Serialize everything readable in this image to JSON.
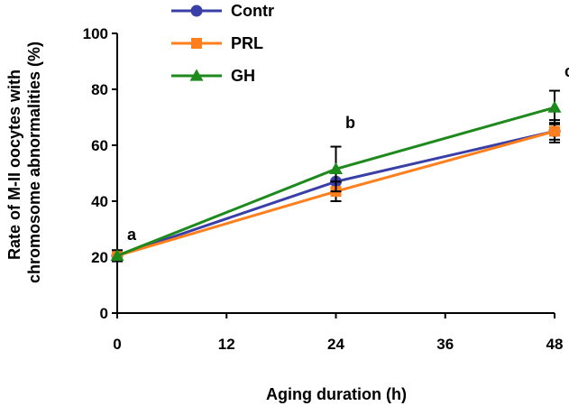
{
  "chart_data": {
    "type": "line",
    "title": "",
    "xlabel": "Aging duration (h)",
    "ylabel_lines": [
      "Rate of M-II oocytes with",
      "chromosome abnormalities (%)"
    ],
    "x": [
      0,
      24,
      48
    ],
    "x_ticks": [
      0,
      12,
      24,
      36,
      48
    ],
    "y_ticks": [
      0,
      20,
      40,
      60,
      80,
      100
    ],
    "xlim": [
      0,
      48
    ],
    "ylim": [
      0,
      100
    ],
    "grid": false,
    "legend_position": "top-left",
    "series": [
      {
        "name": "Contr",
        "color": "#3a3fa8",
        "marker": "circle",
        "values": [
          20.5,
          47,
          65
        ],
        "error": [
          0,
          3,
          3
        ]
      },
      {
        "name": "PRL",
        "color": "#ff7f1e",
        "marker": "square",
        "values": [
          20.5,
          43.5,
          65
        ],
        "error": [
          0,
          3.5,
          4
        ]
      },
      {
        "name": "GH",
        "color": "#1e8a1e",
        "marker": "triangle",
        "values": [
          20.5,
          51.5,
          73.5
        ],
        "error": [
          2,
          8,
          6
        ]
      }
    ],
    "annotations": [
      {
        "text": "a",
        "x": 0,
        "y": 28
      },
      {
        "text": "b",
        "x": 24,
        "y": 68
      },
      {
        "text": "c",
        "x": 48,
        "y": 86.5
      }
    ]
  }
}
